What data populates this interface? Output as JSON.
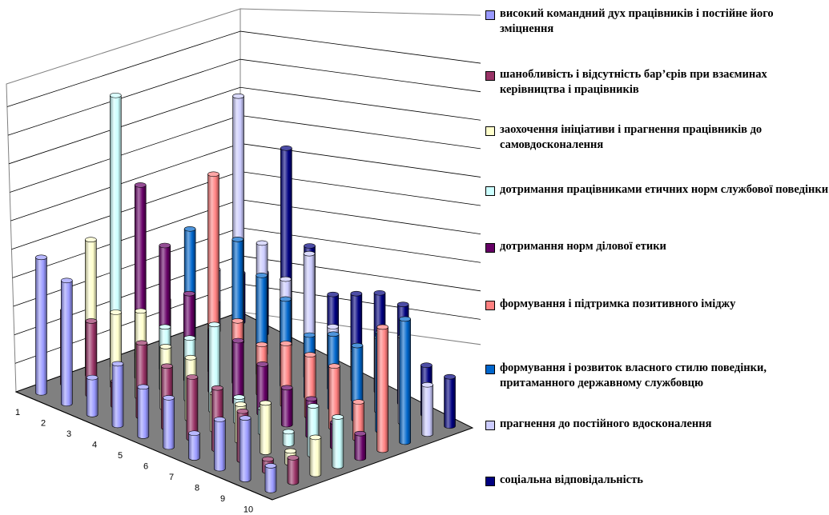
{
  "chart_data": {
    "type": "bar",
    "subtype": "3d-cylinder",
    "title": "",
    "categories": [
      "1",
      "2",
      "3",
      "4",
      "5",
      "6",
      "7",
      "8",
      "9",
      "10"
    ],
    "series": [
      {
        "name": "високий командний дух працівників і постійне його зміцнення",
        "color": "#9999FF",
        "values": [
          11,
          10,
          3,
          5,
          4,
          4,
          2,
          4,
          5,
          2
        ]
      },
      {
        "name": "шанобливість і відсутність бар’єрів при взаєминах керівництва і працівників",
        "color": "#993366",
        "values": [
          6,
          6,
          2,
          6,
          5,
          5,
          5,
          4,
          1,
          2
        ]
      },
      {
        "name": "заохочення ініціативи і прагнення працівників до самовдосконалення",
        "color": "#FFFFCC",
        "values": [
          11,
          6,
          7,
          5,
          5,
          3,
          3,
          4,
          1,
          3
        ]
      },
      {
        "name": "дотримання працівниками етичних норм службової поведінки",
        "color": "#CCFFFF",
        "values": [
          22,
          2,
          5,
          5,
          7,
          2,
          2,
          1,
          4,
          4
        ]
      },
      {
        "name": "дотримання норм ділової етики",
        "color": "#660066",
        "values": [
          14,
          10,
          7,
          5,
          5,
          4,
          3,
          3,
          2,
          2
        ]
      },
      {
        "name": "формування і підтримка позитивного іміджу",
        "color": "#FF8080",
        "values": [
          4,
          4,
          16,
          5,
          4,
          5,
          5,
          5,
          3,
          10
        ]
      },
      {
        "name": "формування і розвиток власного стилю поведінки, притаманного державному службовцю",
        "color": "#0066CC",
        "values": [
          9,
          4,
          10,
          8,
          7,
          5,
          6,
          6,
          8,
          10
        ]
      },
      {
        "name": "прагнення до постійного вдосконалення",
        "color": "#CCCCFF",
        "values": [
          5,
          20,
          9,
          7,
          10,
          5,
          4,
          6,
          7,
          4
        ]
      },
      {
        "name": "соціальна відповідальність",
        "color": "#000080",
        "values": [
          4,
          5,
          16,
          9,
          6,
          7,
          8,
          8,
          4,
          4
        ]
      }
    ],
    "xlabel": "",
    "ylabel": "",
    "ylim": [
      0,
      25
    ],
    "grid": true,
    "legend_position": "right"
  }
}
